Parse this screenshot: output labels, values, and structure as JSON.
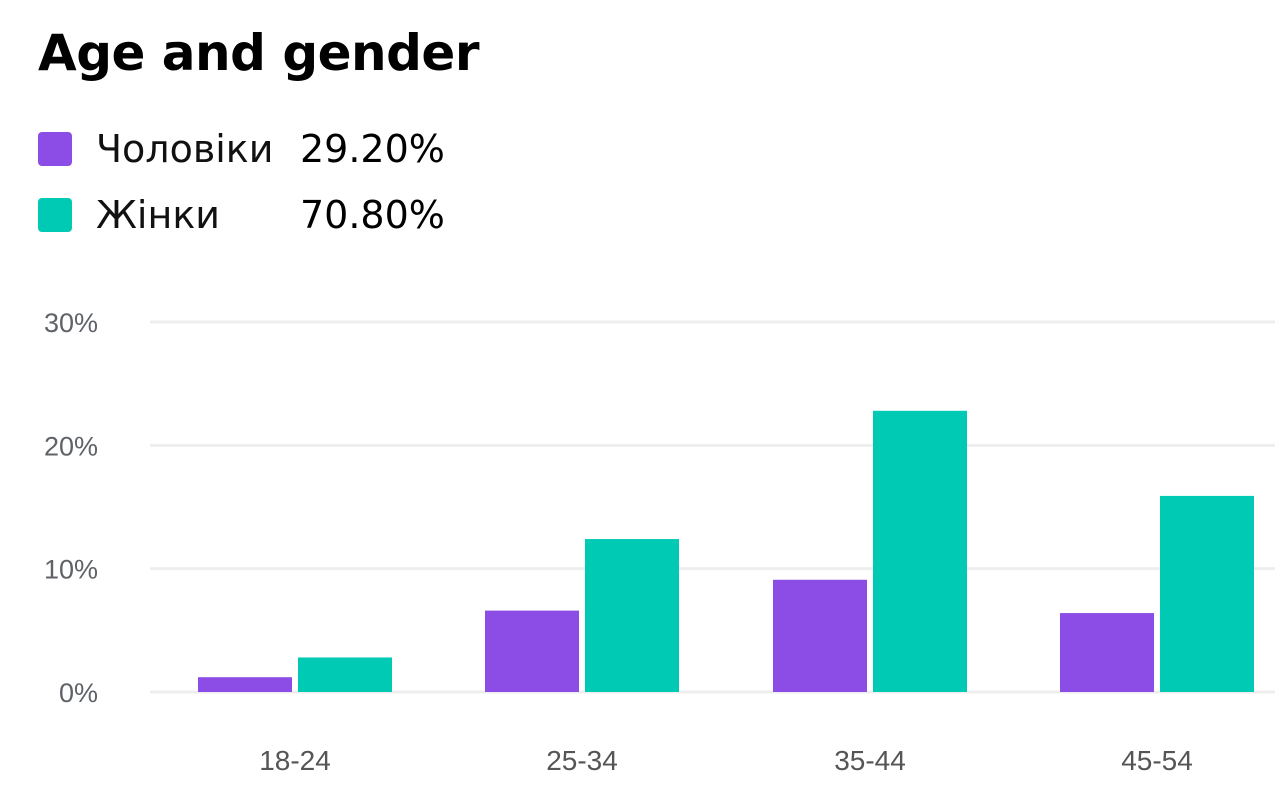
{
  "header": {
    "title": "Age and gender"
  },
  "legend": {
    "items": [
      {
        "label": "Чоловіки",
        "value": "29.20%",
        "color": "#8B4DE5"
      },
      {
        "label": "Жінки",
        "value": "70.80%",
        "color": "#00C9B4"
      }
    ]
  },
  "chart_data": {
    "type": "bar",
    "title": "Age and gender",
    "categories": [
      "18-24",
      "25-34",
      "35-44",
      "45-54"
    ],
    "series": [
      {
        "name": "Чоловіки",
        "color": "#8B4DE5",
        "values": [
          1.2,
          6.6,
          9.1,
          6.4
        ]
      },
      {
        "name": "Жінки",
        "color": "#00C9B4",
        "values": [
          2.8,
          12.4,
          22.8,
          15.9
        ]
      }
    ],
    "ylim": [
      0,
      30
    ],
    "yticks": [
      "0%",
      "10%",
      "20%",
      "30%"
    ],
    "grid": true,
    "legend_position": "top-left"
  }
}
